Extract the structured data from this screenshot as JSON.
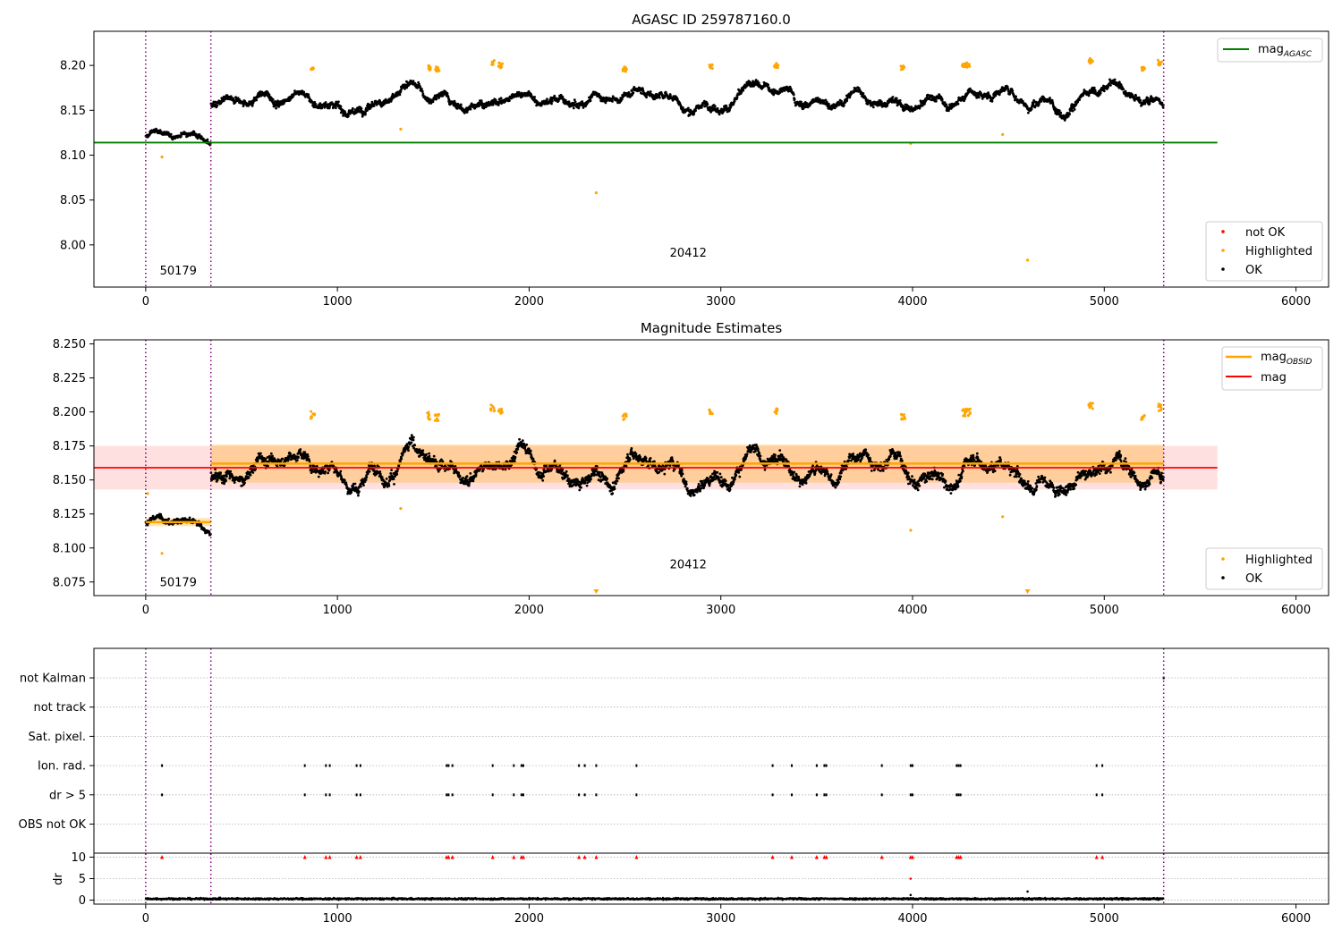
{
  "chart_data": [
    {
      "type": "scatter",
      "title": "AGASC ID 259787160.0",
      "xlim": [
        -270,
        6170
      ],
      "ylim": [
        7.953,
        8.238
      ],
      "xticks": [
        0,
        1000,
        2000,
        3000,
        4000,
        5000,
        6000
      ],
      "yticks": [
        8.0,
        8.05,
        8.1,
        8.15,
        8.2
      ],
      "ytick_labels": [
        "8.00",
        "8.05",
        "8.10",
        "8.15",
        "8.20"
      ],
      "vlines": [
        0,
        340,
        5310
      ],
      "segments": [
        {
          "x0": 0,
          "x1": 340,
          "level": 8.12,
          "amp": 0.009
        },
        {
          "x0": 340,
          "x1": 5310,
          "level": 8.162,
          "amp": 0.014
        }
      ],
      "segment_labels": [
        {
          "x": 170,
          "y": 7.967,
          "text": "50179"
        },
        {
          "x": 2830,
          "y": 7.987,
          "text": "20412"
        }
      ],
      "hlines": [
        {
          "name": "mag_AGASC",
          "y": 8.114,
          "x0": -270,
          "x1": 5590,
          "color": "#008000"
        }
      ],
      "highlighted_outliers": [
        [
          85,
          8.098
        ],
        [
          1330,
          8.129
        ],
        [
          2350,
          8.058
        ],
        [
          3990,
          8.113
        ],
        [
          4470,
          8.123
        ],
        [
          4600,
          7.983
        ]
      ],
      "highlight_clusters": [
        [
          870,
          8.198
        ],
        [
          1480,
          8.197
        ],
        [
          1520,
          8.196
        ],
        [
          1810,
          8.203
        ],
        [
          1850,
          8.2
        ],
        [
          2500,
          8.196
        ],
        [
          2950,
          8.199
        ],
        [
          3290,
          8.2
        ],
        [
          3950,
          8.197
        ],
        [
          4270,
          8.199
        ],
        [
          4290,
          8.2
        ],
        [
          4930,
          8.205
        ],
        [
          5200,
          8.196
        ],
        [
          5290,
          8.203
        ]
      ],
      "legend_top": [
        {
          "label": "mag",
          "sub": "AGASC",
          "color": "#008000"
        }
      ],
      "legend_bottom": [
        {
          "label": "not OK",
          "color": "#ff0000"
        },
        {
          "label": "Highlighted",
          "color": "#ffa500"
        },
        {
          "label": "OK",
          "color": "#000000"
        }
      ]
    },
    {
      "type": "scatter",
      "title": "Magnitude Estimates",
      "xlim": [
        -270,
        6170
      ],
      "ylim": [
        8.065,
        8.253
      ],
      "xticks": [
        0,
        1000,
        2000,
        3000,
        4000,
        5000,
        6000
      ],
      "yticks": [
        8.075,
        8.1,
        8.125,
        8.15,
        8.175,
        8.2,
        8.225,
        8.25
      ],
      "ytick_labels": [
        "8.075",
        "8.100",
        "8.125",
        "8.150",
        "8.175",
        "8.200",
        "8.225",
        "8.250"
      ],
      "vlines": [
        0,
        340,
        5310
      ],
      "segments": [
        {
          "x0": 0,
          "x1": 340,
          "level": 8.118,
          "amp": 0.008
        },
        {
          "x0": 340,
          "x1": 5310,
          "level": 8.16,
          "amp": 0.015
        }
      ],
      "segment_labels": [
        {
          "x": 170,
          "y": 8.072,
          "text": "50179"
        },
        {
          "x": 2830,
          "y": 8.085,
          "text": "20412"
        }
      ],
      "mag_band": {
        "x0": -270,
        "x1": 5590,
        "y0": 8.143,
        "y1": 8.175,
        "mag": 8.159
      },
      "obsid_mags": [
        {
          "x0": 0,
          "x1": 340,
          "mag": 8.119,
          "y0": 8.116,
          "y1": 8.122
        },
        {
          "x0": 340,
          "x1": 5310,
          "mag": 8.162,
          "y0": 8.148,
          "y1": 8.176
        }
      ],
      "highlighted_outliers": [
        [
          10,
          8.14
        ],
        [
          85,
          8.096
        ],
        [
          1330,
          8.129
        ],
        [
          3990,
          8.113
        ],
        [
          4470,
          8.123
        ]
      ],
      "lower_arrows": [
        2350,
        4600
      ],
      "highlight_clusters": [
        [
          870,
          8.198
        ],
        [
          1480,
          8.197
        ],
        [
          1520,
          8.196
        ],
        [
          1810,
          8.203
        ],
        [
          1850,
          8.2
        ],
        [
          2500,
          8.196
        ],
        [
          2950,
          8.199
        ],
        [
          3290,
          8.2
        ],
        [
          3950,
          8.197
        ],
        [
          4270,
          8.199
        ],
        [
          4290,
          8.2
        ],
        [
          4930,
          8.205
        ],
        [
          5200,
          8.196
        ],
        [
          5290,
          8.203
        ]
      ],
      "legend_top": [
        {
          "label": "mag",
          "sub": "OBSID",
          "color": "#ffa500"
        },
        {
          "label": "mag",
          "sub": "",
          "color": "#ff0000"
        }
      ],
      "legend_bottom": [
        {
          "label": "Highlighted",
          "color": "#ffa500"
        },
        {
          "label": "OK",
          "color": "#000000"
        }
      ]
    },
    {
      "type": "scatter",
      "title": "",
      "xlim": [
        -270,
        6170
      ],
      "xticks": [
        0,
        1000,
        2000,
        3000,
        4000,
        5000,
        6000
      ],
      "vlines": [
        0,
        340,
        5310
      ],
      "flag_rows": [
        "not Kalman",
        "not track",
        "Sat. pixel.",
        "Ion. rad.",
        "dr > 5",
        "OBS not OK"
      ],
      "flag_x": [
        85,
        830,
        940,
        960,
        1100,
        1120,
        1570,
        1580,
        1600,
        1810,
        1920,
        1960,
        1970,
        2260,
        2290,
        2350,
        2560,
        3270,
        3370,
        3500,
        3540,
        3550,
        3840,
        3990,
        4000,
        4230,
        4240,
        4250,
        4960,
        4990
      ],
      "kalman_x": [
        5310
      ],
      "dr": {
        "ylabel": "dr",
        "ylim": [
          -0.3,
          10.3
        ],
        "yticks": [
          0,
          5,
          10
        ],
        "ytick_labels": [
          "0",
          "5",
          "10"
        ],
        "capped_value": 10,
        "extra_points": [
          [
            3990,
            5.0
          ],
          [
            4600,
            2.0
          ],
          [
            3990,
            1.2
          ]
        ],
        "baseline": 0.3
      }
    }
  ]
}
